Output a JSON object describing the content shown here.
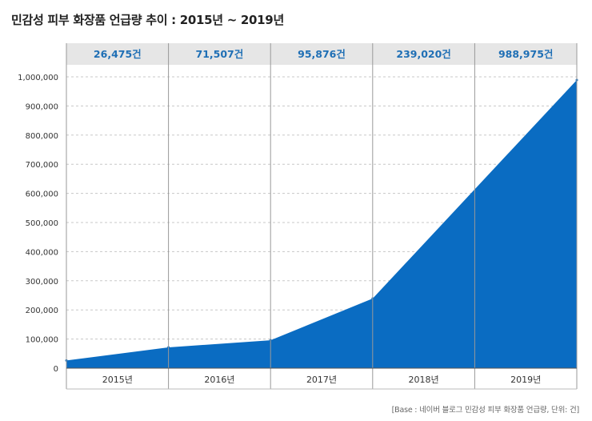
{
  "title": "민감성 피부 화장품 언급량 추이 : 2015년 ~ 2019년",
  "source": "[Base : 네이버 블로그 민감성 피부 화장품 언급량, 단위: 건]",
  "colors": {
    "area": "#0a6cc2",
    "label_band": "#e6e6e6",
    "value_text": "#1f6fb5",
    "grid": "#c8c8c8",
    "divider": "#999999"
  },
  "chart_data": {
    "type": "area",
    "title": "민감성 피부 화장품 언급량 추이 : 2015년 ~ 2019년",
    "xlabel": "",
    "ylabel": "",
    "categories": [
      "2015년",
      "2016년",
      "2017년",
      "2018년",
      "2019년"
    ],
    "values": [
      26475,
      71507,
      95876,
      239020,
      988975
    ],
    "value_labels": [
      "26,475건",
      "71,507건",
      "95,876건",
      "239,020건",
      "988,975건"
    ],
    "yticks": [
      0,
      100000,
      200000,
      300000,
      400000,
      500000,
      600000,
      700000,
      800000,
      900000,
      1000000
    ],
    "ytick_labels": [
      "0",
      "100,000",
      "200,000",
      "300,000",
      "400,000",
      "500,000",
      "600,000",
      "700,000",
      "800,000",
      "900,000",
      "1,000,000"
    ],
    "ylim": [
      0,
      1000000
    ],
    "grid": true,
    "unit": "건"
  }
}
